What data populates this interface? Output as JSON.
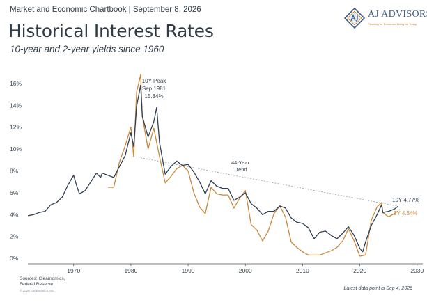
{
  "header": {
    "kicker": "Market and Economic Chartbook | September 8, 2026",
    "title": "Historical Interest Rates",
    "subtitle": "10-year and 2-year yields since 1960"
  },
  "logo": {
    "name": "AJ ADVISORS",
    "tagline": "Planning for Tomorrow, Living for Today"
  },
  "footer": {
    "sources_line1": "Sources: Clearnomics,",
    "sources_line2": "Federal Reserve",
    "copyright": "© 2026 Clearnomics, Inc.",
    "note": "Latest data point is Sep 4, 2026"
  },
  "colors": {
    "ten_year": "#2f3e52",
    "two_year": "#c8893e",
    "trend": "#9aa3ad",
    "axis_text": "#3a4652"
  },
  "chart_data": {
    "type": "line",
    "x_unit": "year",
    "xlim": [
      1962,
      2031
    ],
    "ylim": [
      -0.5,
      16.5
    ],
    "x_ticks": [
      1970,
      1980,
      1990,
      2000,
      2010,
      2020,
      2030
    ],
    "y_ticks": [
      {
        "value": 0,
        "label": "0%"
      },
      {
        "value": 2,
        "label": "2%"
      },
      {
        "value": 4,
        "label": "4%"
      },
      {
        "value": 6,
        "label": "6%"
      },
      {
        "value": 8,
        "label": "8%"
      },
      {
        "value": 10,
        "label": "10%"
      },
      {
        "value": 12,
        "label": "12%"
      },
      {
        "value": 14,
        "label": "14%"
      },
      {
        "value": 16,
        "label": "16%"
      }
    ],
    "grid": false,
    "series": [
      {
        "id": "ten_year",
        "end_label": "10Y 4.77%",
        "x": [
          1962,
          1963,
          1964,
          1965,
          1966,
          1967,
          1968,
          1969,
          1970,
          1970.5,
          1971,
          1972,
          1973,
          1974,
          1974.7,
          1975,
          1976,
          1977,
          1978,
          1979,
          1980,
          1980.5,
          1981,
          1981.7,
          1982,
          1983,
          1984,
          1984.5,
          1985,
          1986,
          1987,
          1988,
          1989,
          1990,
          1991,
          1992,
          1993,
          1994,
          1995,
          1996,
          1997,
          1998,
          1999,
          2000,
          2001,
          2002,
          2003,
          2004,
          2005,
          2006,
          2007,
          2008,
          2009,
          2010,
          2011,
          2012,
          2013,
          2014,
          2015,
          2016,
          2017,
          2018,
          2019,
          2020,
          2020.5,
          2021,
          2022,
          2023,
          2023.8,
          2024,
          2025,
          2026,
          2026.7
        ],
        "y": [
          3.9,
          4.0,
          4.2,
          4.3,
          4.9,
          5.1,
          5.6,
          6.7,
          7.6,
          6.7,
          5.9,
          6.2,
          7.0,
          7.8,
          7.4,
          7.8,
          7.6,
          7.4,
          8.4,
          9.4,
          11.5,
          10.2,
          13.9,
          15.84,
          13.0,
          11.1,
          12.5,
          13.8,
          10.6,
          7.7,
          8.4,
          8.9,
          8.5,
          8.6,
          7.9,
          7.0,
          5.9,
          7.1,
          6.6,
          6.4,
          6.4,
          5.3,
          5.6,
          6.0,
          5.0,
          4.6,
          4.0,
          4.3,
          4.3,
          4.8,
          4.6,
          3.7,
          3.3,
          3.2,
          2.8,
          1.8,
          2.4,
          2.5,
          2.1,
          1.8,
          2.3,
          2.9,
          2.1,
          0.9,
          0.6,
          1.5,
          3.0,
          4.0,
          4.9,
          4.2,
          4.3,
          4.5,
          4.77
        ]
      },
      {
        "id": "two_year",
        "end_label": "2Y 4.34%",
        "x": [
          1976,
          1977,
          1978,
          1979,
          1980,
          1980.5,
          1981,
          1981.7,
          1982,
          1983,
          1984,
          1985,
          1986,
          1987,
          1988,
          1989,
          1990,
          1991,
          1992,
          1993,
          1994,
          1995,
          1996,
          1997,
          1998,
          1999,
          2000,
          2001,
          2002,
          2003,
          2004,
          2005,
          2006,
          2007,
          2008,
          2009,
          2010,
          2011,
          2012,
          2013,
          2014,
          2015,
          2016,
          2017,
          2018,
          2019,
          2020,
          2021,
          2022,
          2023,
          2023.8,
          2024,
          2025,
          2026,
          2026.7
        ],
        "y": [
          6.5,
          6.5,
          8.8,
          10.3,
          12.0,
          9.3,
          15.2,
          16.8,
          13.0,
          10.0,
          11.9,
          9.3,
          6.9,
          7.5,
          8.2,
          8.5,
          8.0,
          6.0,
          4.7,
          4.1,
          6.5,
          5.9,
          5.8,
          5.8,
          4.6,
          5.5,
          6.2,
          3.1,
          2.6,
          1.6,
          2.5,
          4.1,
          4.8,
          3.8,
          1.5,
          1.0,
          0.6,
          0.3,
          0.3,
          0.3,
          0.5,
          0.7,
          1.0,
          1.6,
          2.7,
          1.6,
          0.2,
          0.3,
          3.5,
          4.7,
          5.1,
          4.2,
          3.8,
          4.1,
          4.34
        ]
      }
    ],
    "trend_line": {
      "label_line1": "44-Year",
      "label_line2": "Trend",
      "x": [
        1981.7,
        2026.7
      ],
      "y": [
        9.2,
        4.77
      ]
    },
    "annotations": [
      {
        "id": "peak_line1",
        "text": "10Y Peak"
      },
      {
        "id": "peak_line2",
        "text": "Sep 1981"
      },
      {
        "id": "peak_line3",
        "text": "15.84%"
      }
    ]
  }
}
